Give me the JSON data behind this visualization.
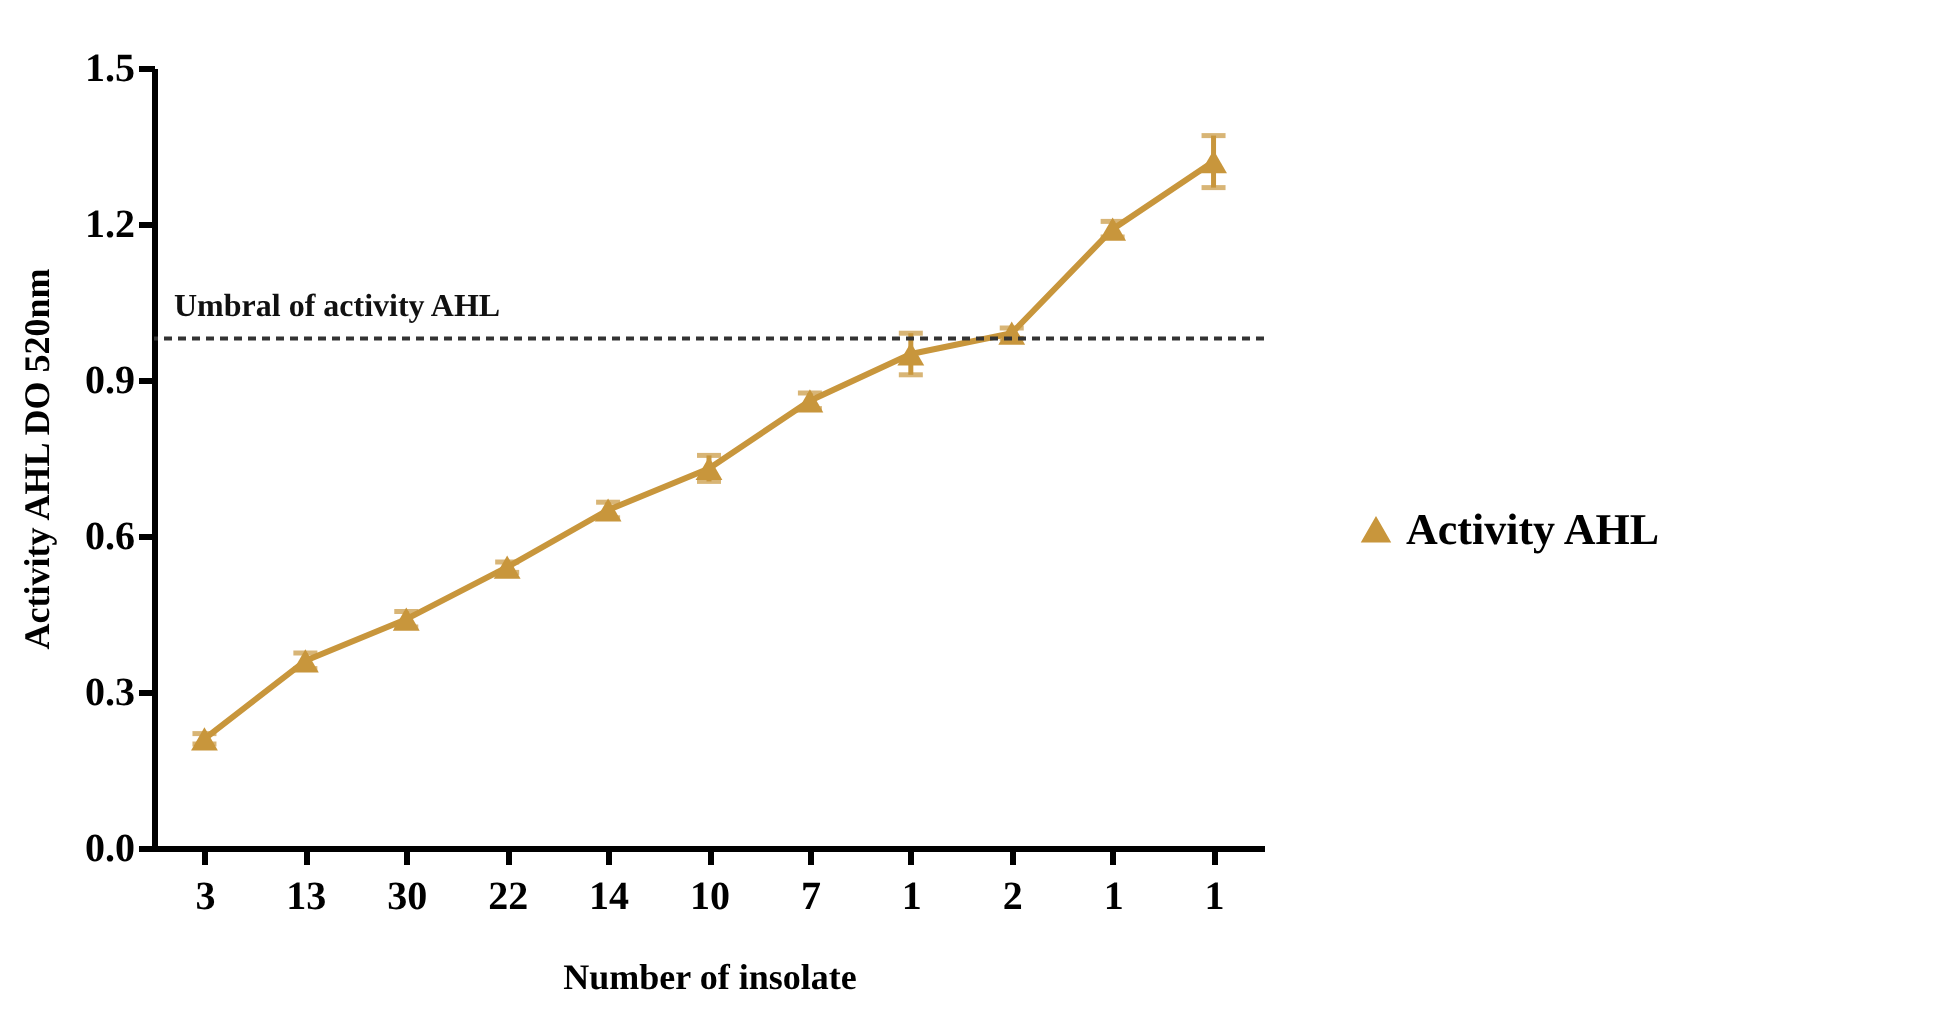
{
  "chart_data": {
    "type": "line",
    "xlabel": "Number of insolate",
    "ylabel": "Activity AHL DO 520nm",
    "categories": [
      "3",
      "13",
      "30",
      "22",
      "14",
      "10",
      "7",
      "1",
      "2",
      "1",
      "1"
    ],
    "series": [
      {
        "name": "Activity AHL",
        "color": "#c8963c",
        "values": [
          0.21,
          0.36,
          0.44,
          0.54,
          0.65,
          0.73,
          0.86,
          0.95,
          0.99,
          1.19,
          1.32
        ],
        "errors": [
          0.01,
          0.015,
          0.015,
          0.01,
          0.015,
          0.025,
          0.015,
          0.04,
          0.01,
          0.015,
          0.05
        ]
      }
    ],
    "ylim": [
      0,
      1.5
    ],
    "yticks": [
      {
        "value": 0,
        "label": "0.0"
      },
      0.3,
      0.6,
      0.9,
      1.2,
      1.5
    ],
    "ref_lines": [
      {
        "axis": "y",
        "value": 0.98,
        "label": "Umbral of activity AHL",
        "line_style": "dashed",
        "color": "#333333"
      }
    ],
    "grid": false,
    "legend": "right",
    "marker": "triangle",
    "line_style": "solid"
  }
}
